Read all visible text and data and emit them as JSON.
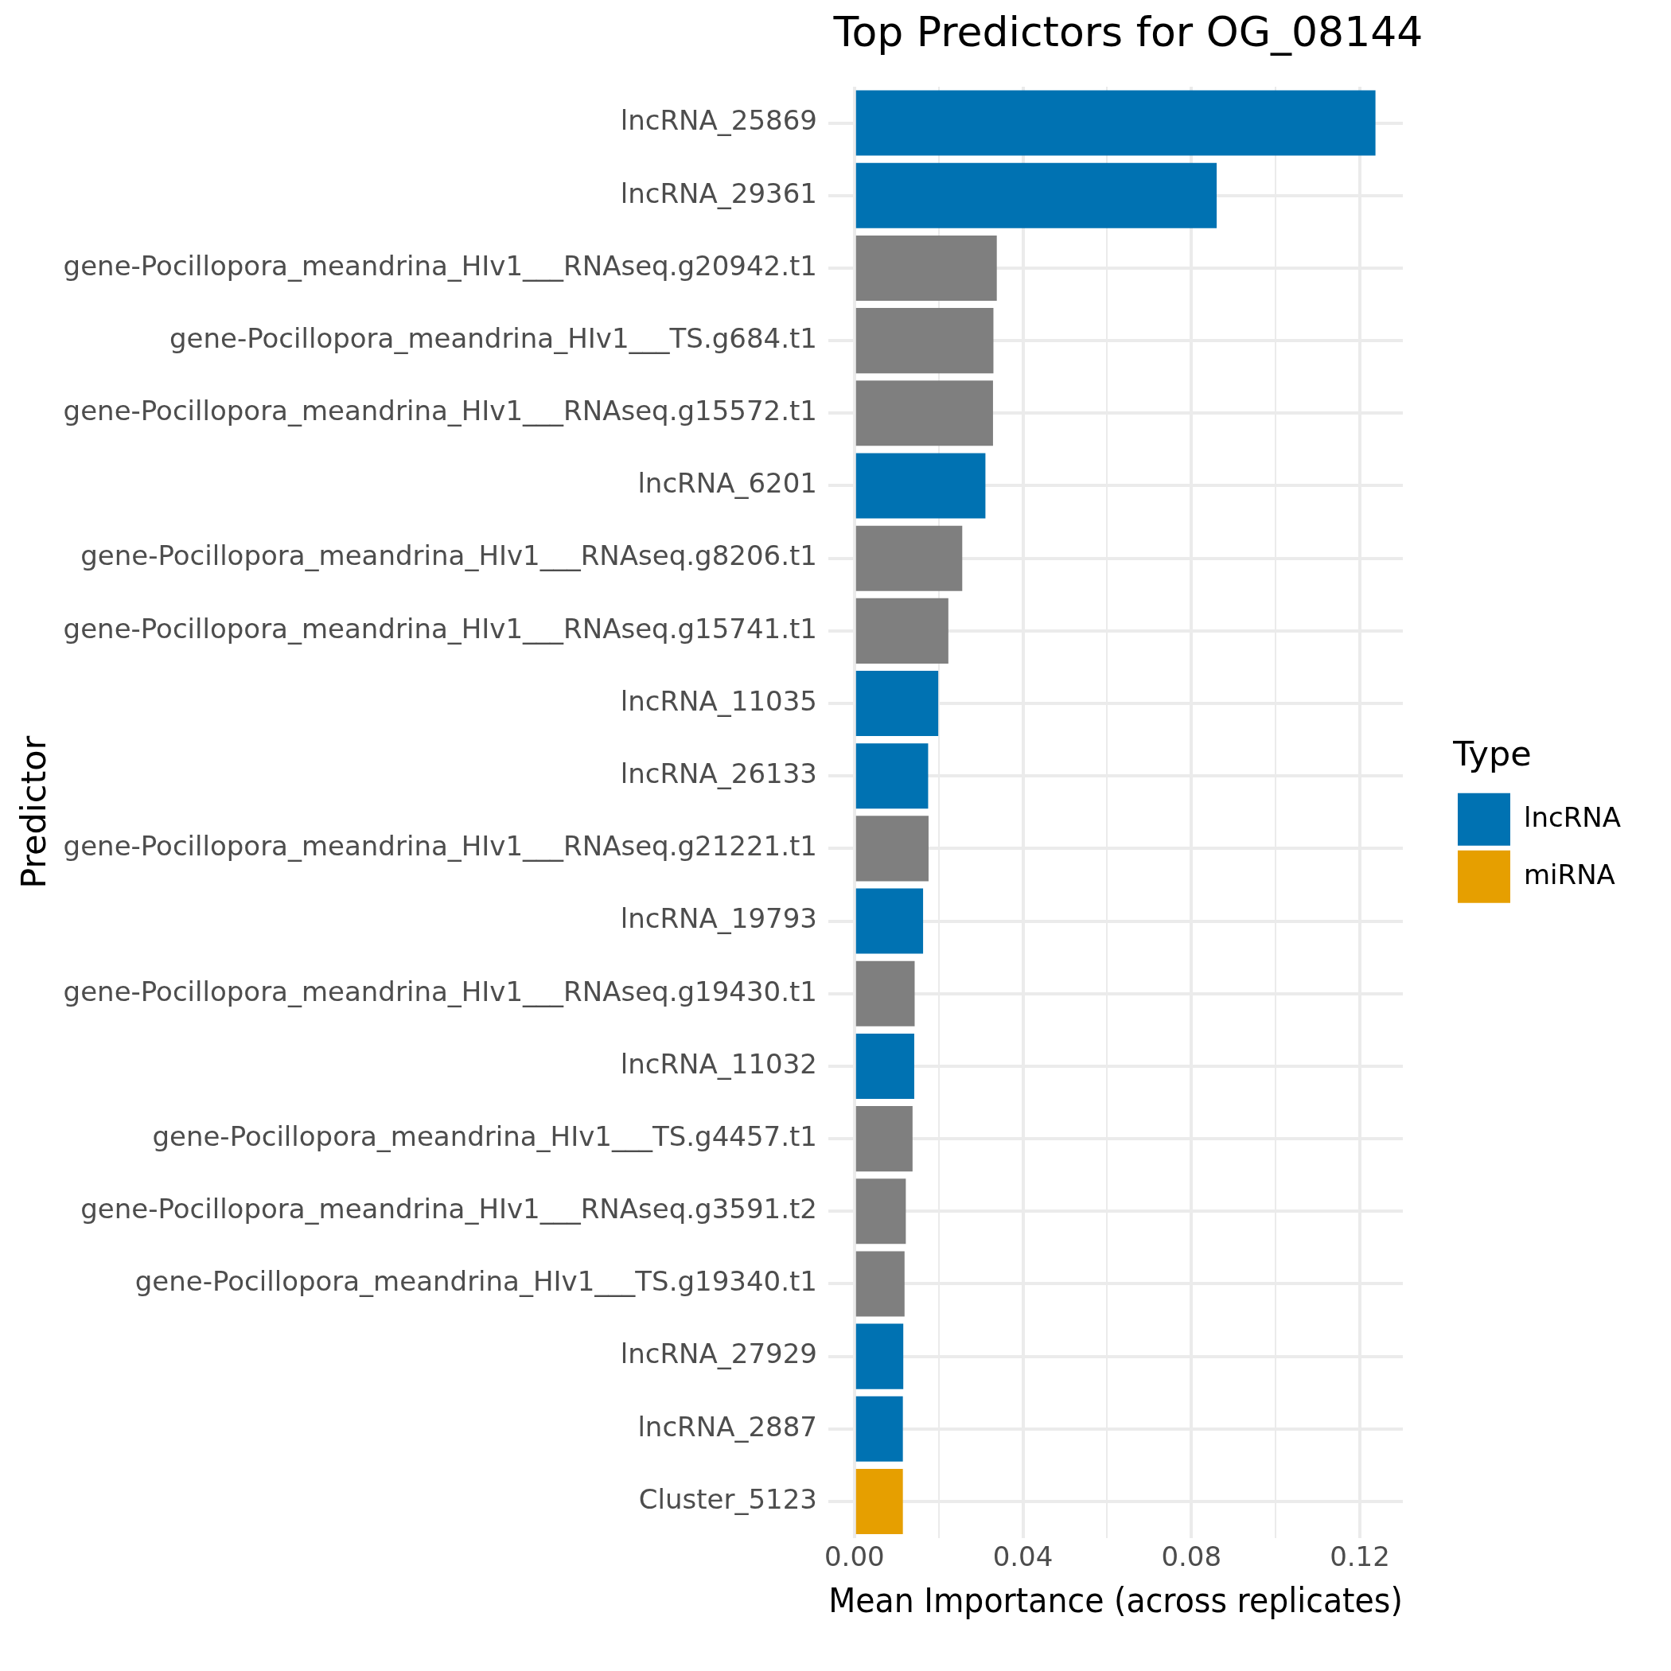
{
  "chart_data": {
    "type": "bar",
    "orientation": "horizontal",
    "title": "Top Predictors for OG_08144",
    "xlabel": "Mean Importance (across replicates)",
    "ylabel": "Predictor",
    "legend_title": "Type",
    "legend": "right",
    "grid": true,
    "categories": [
      "lncRNA_25869",
      "lncRNA_29361",
      "gene-Pocillopora_meandrina_HIv1___RNAseq.g20942.t1",
      "gene-Pocillopora_meandrina_HIv1___TS.g684.t1",
      "gene-Pocillopora_meandrina_HIv1___RNAseq.g15572.t1",
      "lncRNA_6201",
      "gene-Pocillopora_meandrina_HIv1___RNAseq.g8206.t1",
      "gene-Pocillopora_meandrina_HIv1___RNAseq.g15741.t1",
      "lncRNA_11035",
      "lncRNA_26133",
      "gene-Pocillopora_meandrina_HIv1___RNAseq.g21221.t1",
      "lncRNA_19793",
      "gene-Pocillopora_meandrina_HIv1___RNAseq.g19430.t1",
      "lncRNA_11032",
      "gene-Pocillopora_meandrina_HIv1___TS.g4457.t1",
      "gene-Pocillopora_meandrina_HIv1___RNAseq.g3591.t2",
      "gene-Pocillopora_meandrina_HIv1___TS.g19340.t1",
      "lncRNA_27929",
      "lncRNA_2887",
      "Cluster_5123"
    ],
    "series": [
      {
        "name": "lncRNA",
        "color": "#0072b2",
        "values": [
          0.1237,
          0.086,
          null,
          null,
          null,
          0.0311,
          null,
          null,
          0.0199,
          0.0175,
          null,
          0.0163,
          null,
          0.0142,
          null,
          null,
          null,
          0.0116,
          0.0115,
          null
        ]
      },
      {
        "name": "miRNA",
        "color": "#e69f00",
        "values": [
          null,
          null,
          null,
          null,
          null,
          null,
          null,
          null,
          null,
          null,
          null,
          null,
          null,
          null,
          null,
          null,
          null,
          null,
          null,
          0.0115
        ]
      },
      {
        "color": "#7f7f7f",
        "values": [
          null,
          null,
          0.0338,
          0.033,
          0.0329,
          null,
          0.0256,
          0.0223,
          null,
          null,
          0.0176,
          null,
          0.0143,
          null,
          0.0138,
          0.0122,
          0.0119,
          null,
          null,
          null
        ]
      }
    ],
    "xlim": [
      -0.0062,
      0.1302
    ],
    "xticks": [
      {
        "value": 0,
        "label": "0.00"
      },
      {
        "value": 0.02,
        "label": null
      },
      {
        "value": 0.04,
        "label": "0.04"
      },
      {
        "value": 0.06,
        "label": null
      },
      {
        "value": 0.08,
        "label": "0.08"
      },
      {
        "value": 0.1,
        "label": null
      },
      {
        "value": 0.12,
        "label": "0.12"
      }
    ]
  }
}
